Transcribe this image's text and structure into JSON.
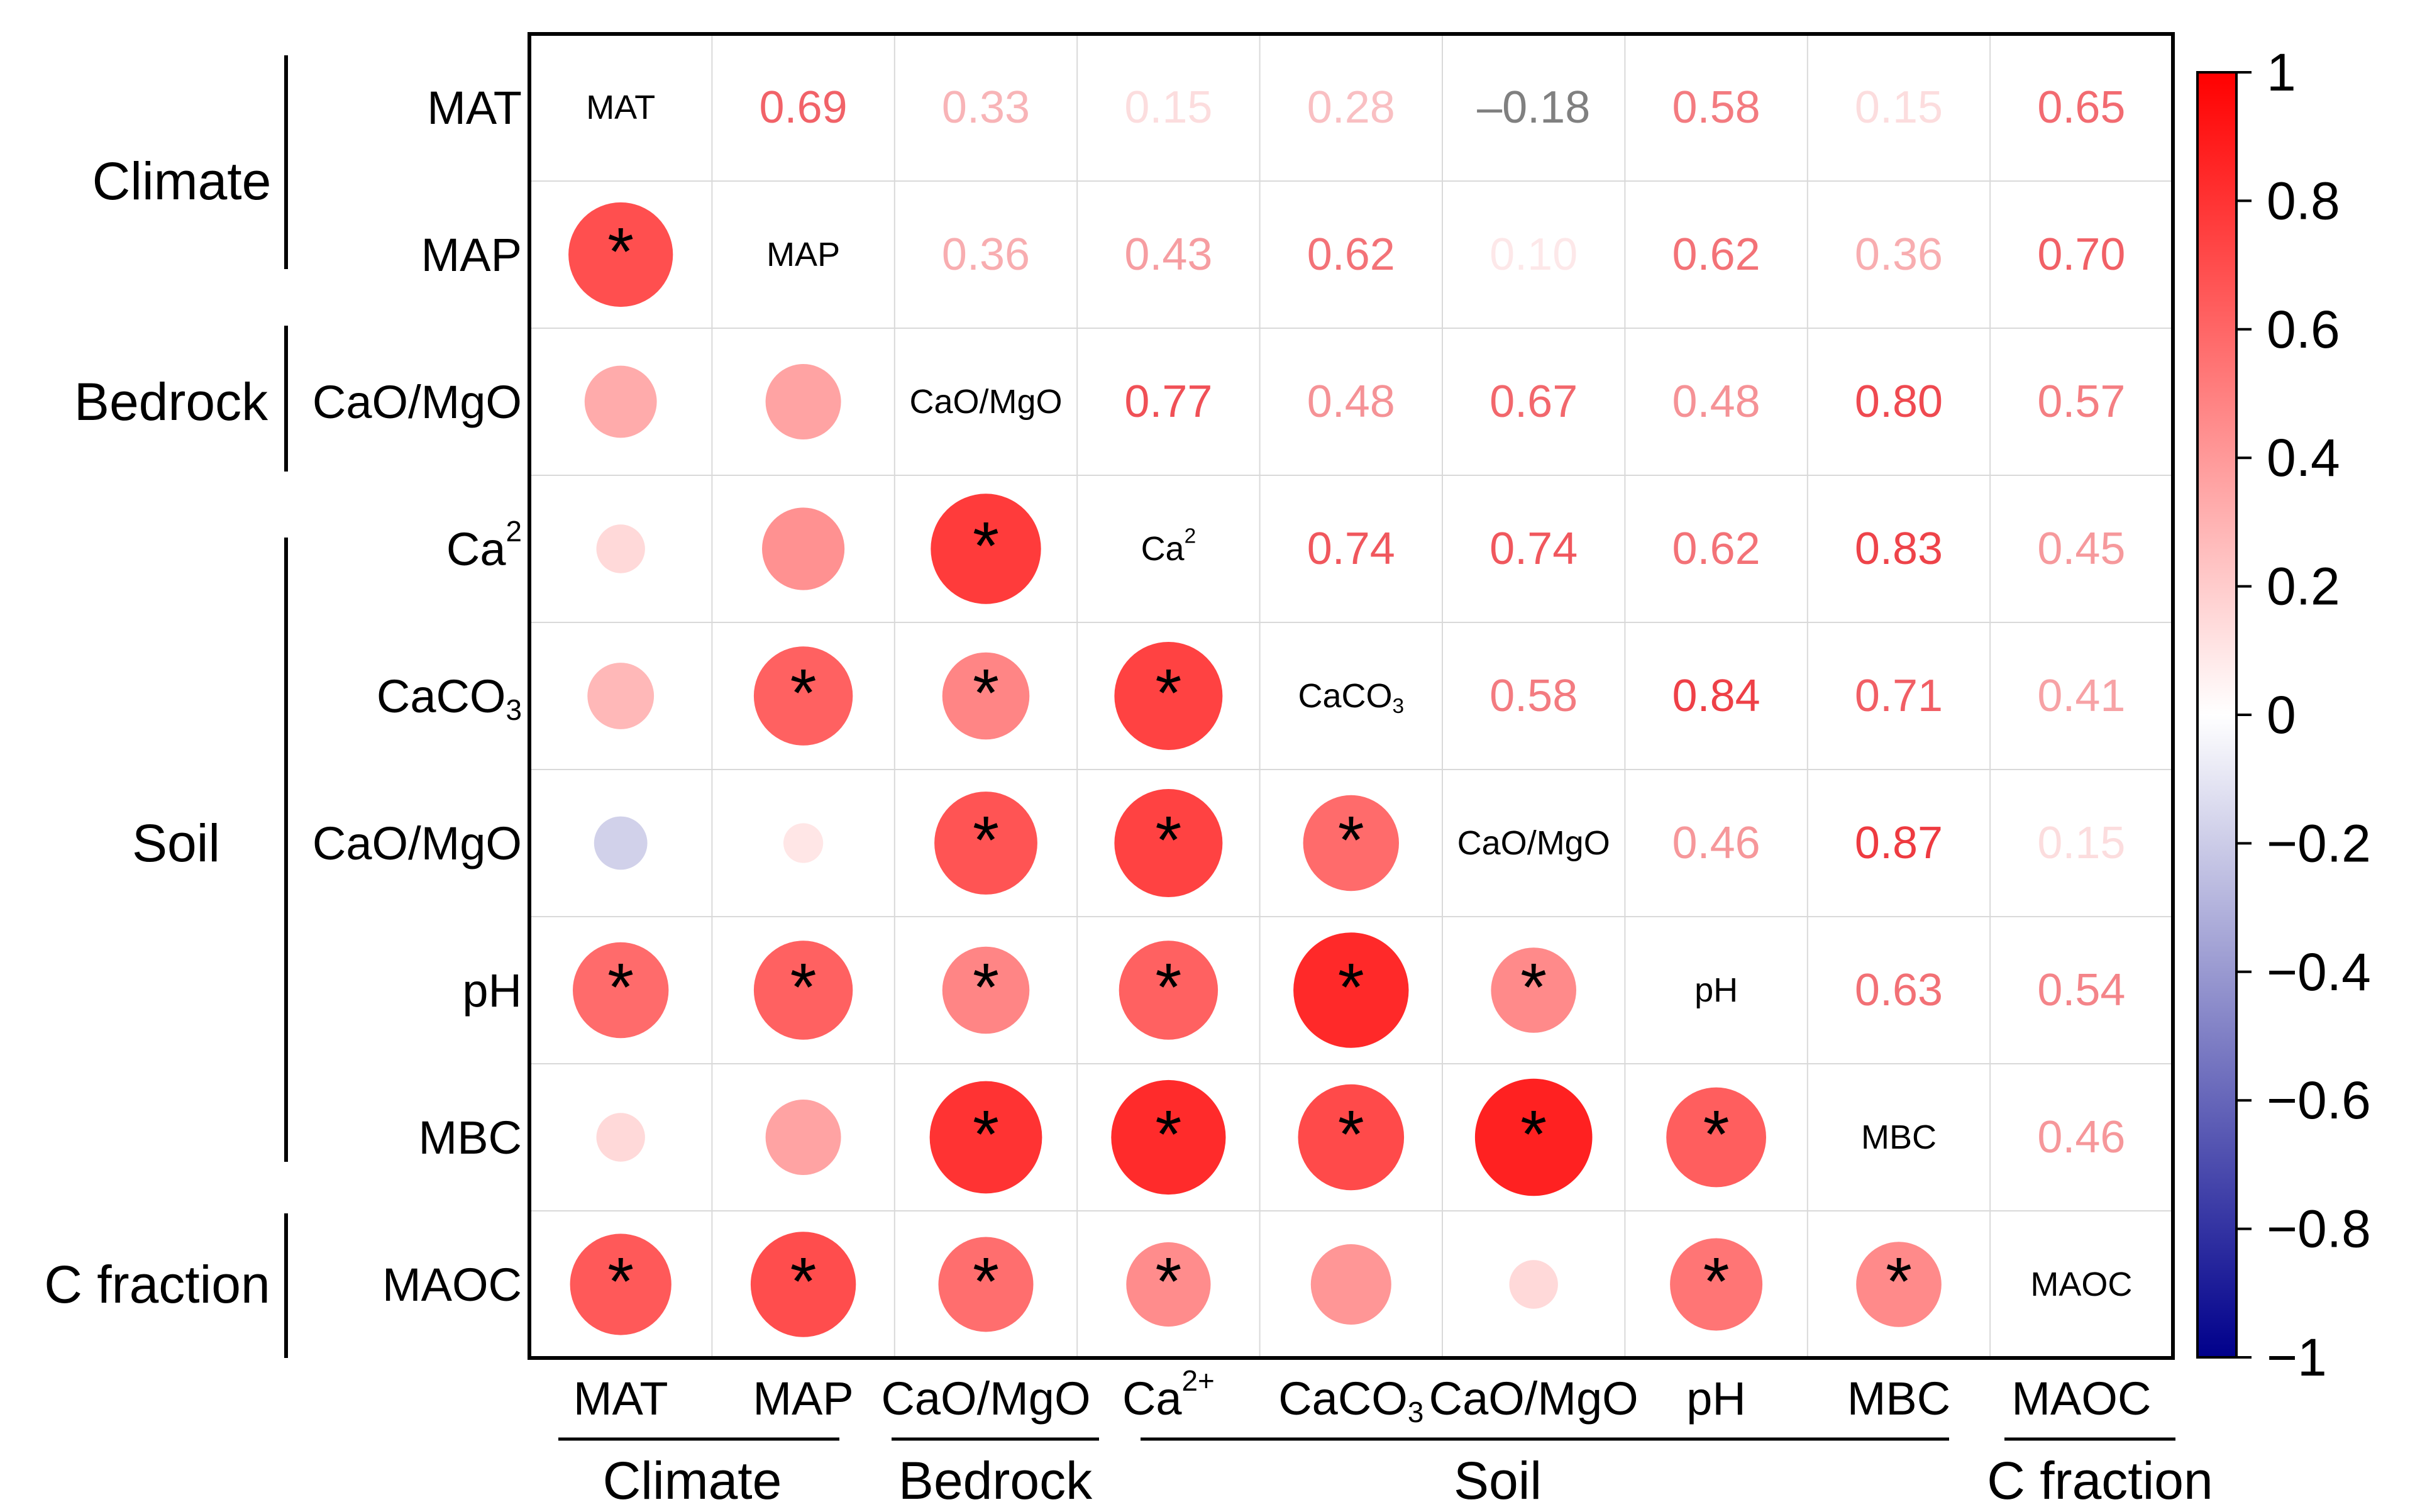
{
  "chart_data": {
    "type": "heatmap",
    "variables": [
      "MAT",
      "MAP",
      "CaO/MgO",
      "Ca2+",
      "CaCO3",
      "CaO/MgO",
      "pH",
      "MBC",
      "MAOC"
    ],
    "row_labels": [
      {
        "base": "MAT",
        "sup": "",
        "sub": ""
      },
      {
        "base": "MAP",
        "sup": "",
        "sub": ""
      },
      {
        "base": "CaO/MgO",
        "sup": "",
        "sub": ""
      },
      {
        "base": "Ca",
        "sup": "2",
        "sub": ""
      },
      {
        "base": "CaCO",
        "sup": "",
        "sub": "3"
      },
      {
        "base": "CaO/MgO",
        "sup": "",
        "sub": ""
      },
      {
        "base": "pH",
        "sup": "",
        "sub": ""
      },
      {
        "base": "MBC",
        "sup": "",
        "sub": ""
      },
      {
        "base": "MAOC",
        "sup": "",
        "sub": ""
      }
    ],
    "col_labels": [
      {
        "base": "MAT",
        "sup": "",
        "sub": ""
      },
      {
        "base": "MAP",
        "sup": "",
        "sub": ""
      },
      {
        "base": "CaO/MgO",
        "sup": "",
        "sub": ""
      },
      {
        "base": "Ca",
        "sup": "2+",
        "sub": ""
      },
      {
        "base": "CaCO",
        "sup": "",
        "sub": "3"
      },
      {
        "base": "CaO/MgO",
        "sup": "",
        "sub": ""
      },
      {
        "base": "pH",
        "sup": "",
        "sub": ""
      },
      {
        "base": "MBC",
        "sup": "",
        "sub": ""
      },
      {
        "base": "MAOC",
        "sup": "",
        "sub": ""
      }
    ],
    "diagonal_labels": [
      {
        "base": "MAT",
        "sup": "",
        "sub": ""
      },
      {
        "base": "MAP",
        "sup": "",
        "sub": ""
      },
      {
        "base": "CaO/MgO",
        "sup": "",
        "sub": ""
      },
      {
        "base": "Ca",
        "sup": "2",
        "sub": ""
      },
      {
        "base": "CaCO",
        "sup": "",
        "sub": "3"
      },
      {
        "base": "CaO/MgO",
        "sup": "",
        "sub": ""
      },
      {
        "base": "pH",
        "sup": "",
        "sub": ""
      },
      {
        "base": "MBC",
        "sup": "",
        "sub": ""
      },
      {
        "base": "MAOC",
        "sup": "",
        "sub": ""
      }
    ],
    "matrix": [
      [
        1,
        0.69,
        0.33,
        0.15,
        0.28,
        -0.18,
        0.58,
        0.15,
        0.65
      ],
      [
        0.69,
        1,
        0.36,
        0.43,
        0.62,
        0.1,
        0.62,
        0.36,
        0.7
      ],
      [
        0.33,
        0.36,
        1,
        0.77,
        0.48,
        0.67,
        0.48,
        0.8,
        0.57
      ],
      [
        0.15,
        0.43,
        0.77,
        1,
        0.74,
        0.74,
        0.62,
        0.83,
        0.45
      ],
      [
        0.28,
        0.62,
        0.48,
        0.74,
        1,
        0.58,
        0.84,
        0.71,
        0.41
      ],
      [
        -0.18,
        0.1,
        0.67,
        0.74,
        0.58,
        1,
        0.46,
        0.87,
        0.15
      ],
      [
        0.58,
        0.62,
        0.48,
        0.62,
        0.84,
        0.46,
        1,
        0.63,
        0.54
      ],
      [
        0.15,
        0.36,
        0.8,
        0.83,
        0.71,
        0.87,
        0.63,
        1,
        0.46
      ],
      [
        0.65,
        0.7,
        0.57,
        0.45,
        0.41,
        0.15,
        0.54,
        0.46,
        1
      ]
    ],
    "upper_triangle_text": [
      "0.69",
      "0.33",
      "0.15",
      "0.28",
      "–0.18",
      "0.58",
      "0.15",
      "0.65",
      "0.36",
      "0.43",
      "0.62",
      "0.10",
      "0.62",
      "0.36",
      "0.70",
      "0.77",
      "0.48",
      "0.67",
      "0.48",
      "0.80",
      "0.57",
      "0.74",
      "0.74",
      "0.62",
      "0.83",
      "0.45",
      "0.58",
      "0.84",
      "0.71",
      "0.41",
      "0.46",
      "0.87",
      "0.15",
      "0.63",
      "0.54",
      "0.46"
    ],
    "significance_marker": "*",
    "significant": [
      [
        1,
        0
      ],
      [
        3,
        2
      ],
      [
        4,
        1
      ],
      [
        4,
        2
      ],
      [
        4,
        3
      ],
      [
        5,
        2
      ],
      [
        5,
        3
      ],
      [
        5,
        4
      ],
      [
        6,
        0
      ],
      [
        6,
        1
      ],
      [
        6,
        2
      ],
      [
        6,
        3
      ],
      [
        6,
        4
      ],
      [
        6,
        5
      ],
      [
        7,
        2
      ],
      [
        7,
        3
      ],
      [
        7,
        4
      ],
      [
        7,
        5
      ],
      [
        7,
        6
      ],
      [
        8,
        0
      ],
      [
        8,
        1
      ],
      [
        8,
        2
      ],
      [
        8,
        3
      ],
      [
        8,
        6
      ],
      [
        8,
        7
      ]
    ],
    "row_groups": [
      {
        "label": "Climate",
        "start": 0,
        "end": 1
      },
      {
        "label": "Bedrock",
        "start": 2,
        "end": 2
      },
      {
        "label": "Soil",
        "start": 3,
        "end": 7
      },
      {
        "label": "C fraction",
        "start": 8,
        "end": 8
      }
    ],
    "col_groups": [
      {
        "label": "Climate",
        "start": 0,
        "end": 1
      },
      {
        "label": "Bedrock",
        "start": 2,
        "end": 2
      },
      {
        "label": "Soil",
        "start": 3,
        "end": 7
      },
      {
        "label": "C fraction",
        "start": 8,
        "end": 8
      }
    ],
    "colorbar": {
      "range": [
        -1,
        1
      ],
      "ticks": [
        "1",
        "0.8",
        "0.6",
        "0.4",
        "0.2",
        "0",
        "−0.2",
        "−0.4",
        "−0.6",
        "−0.8",
        "−1"
      ],
      "colors": {
        "negative": "#00008b",
        "zero": "#ffffff",
        "positive": "#ff0000"
      }
    }
  }
}
